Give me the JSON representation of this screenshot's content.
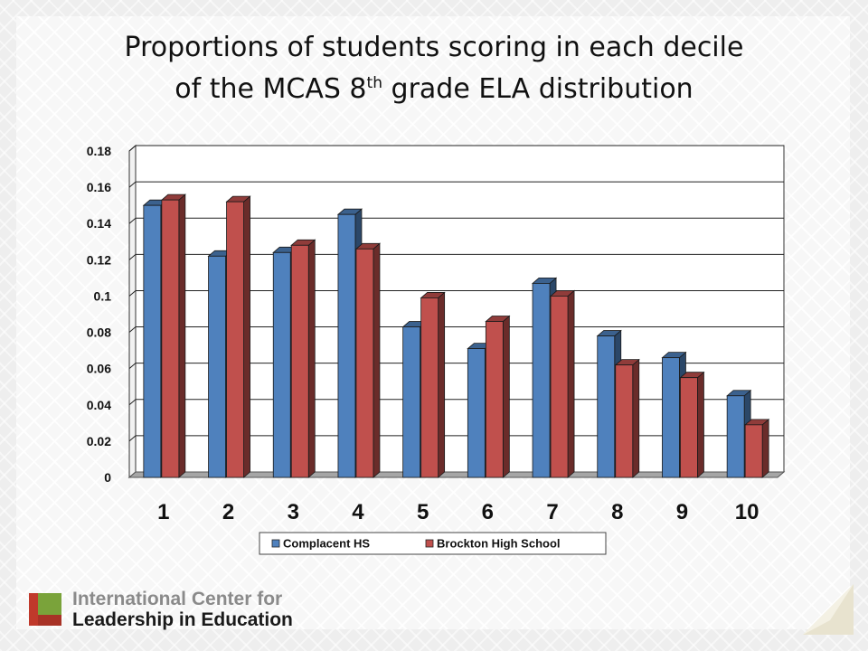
{
  "slide": {
    "title_line1": "Proportions of students scoring in each decile",
    "title_line2_prefix": "of the MCAS 8",
    "title_line2_sup": "th",
    "title_line2_suffix": " grade ELA distribution"
  },
  "logo": {
    "line1": "International Center for",
    "line2": "Leadership in Education",
    "colors": [
      "#c0392b",
      "#7aa33a",
      "#8a8a8a"
    ]
  },
  "chart_data": {
    "type": "bar",
    "categories": [
      "1",
      "2",
      "3",
      "4",
      "5",
      "6",
      "7",
      "8",
      "9",
      "10"
    ],
    "series": [
      {
        "name": "Complacent HS",
        "color": "#4f81bd",
        "values": [
          0.15,
          0.122,
          0.124,
          0.145,
          0.083,
          0.071,
          0.107,
          0.078,
          0.066,
          0.045
        ]
      },
      {
        "name": "Brockton High School",
        "color": "#c0504d",
        "values": [
          0.153,
          0.152,
          0.128,
          0.126,
          0.099,
          0.086,
          0.1,
          0.062,
          0.055,
          0.029
        ]
      }
    ],
    "y_ticks": [
      "0",
      "0.02",
      "0.04",
      "0.06",
      "0.08",
      "0.1",
      "0.12",
      "0.14",
      "0.16",
      "0.18"
    ],
    "ylim": [
      0,
      0.18
    ],
    "grid": true,
    "legend_position": "bottom"
  }
}
